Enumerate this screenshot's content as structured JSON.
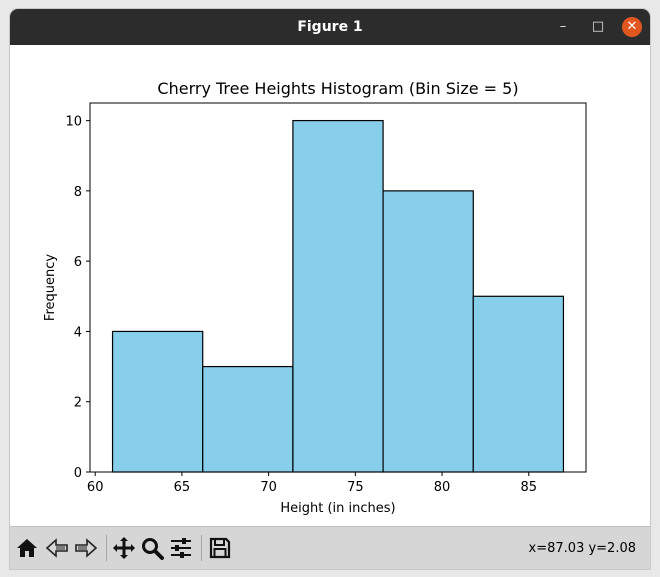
{
  "window": {
    "title": "Figure 1",
    "minimize_glyph": "–",
    "maximize_glyph": "□",
    "close_glyph": "✕",
    "close_color": "#e2561f"
  },
  "chart_data": {
    "type": "bar",
    "title": "Cherry Tree Heights Histogram (Bin Size = 5)",
    "xlabel": "Height (in inches)",
    "ylabel": "Frequency",
    "bins": [
      {
        "start": 61.0,
        "end": 66.2,
        "count": 4
      },
      {
        "start": 66.2,
        "end": 71.4,
        "count": 3
      },
      {
        "start": 71.4,
        "end": 76.6,
        "count": 10
      },
      {
        "start": 76.6,
        "end": 81.8,
        "count": 8
      },
      {
        "start": 81.8,
        "end": 87.0,
        "count": 5
      }
    ],
    "xlim": [
      59.7,
      88.3
    ],
    "ylim": [
      0,
      10.5
    ],
    "xticks": [
      60,
      65,
      70,
      75,
      80,
      85
    ],
    "yticks": [
      0,
      2,
      4,
      6,
      8,
      10
    ],
    "bar_color": "#87ceeb",
    "edge_color": "#000000",
    "grid": false
  },
  "toolbar": {
    "buttons": [
      {
        "name": "home-icon",
        "icon": "home"
      },
      {
        "name": "back-icon",
        "icon": "back"
      },
      {
        "name": "forward-icon",
        "icon": "forward"
      },
      {
        "name": "pan-icon",
        "icon": "pan"
      },
      {
        "name": "zoom-icon",
        "icon": "zoom"
      },
      {
        "name": "configure-subplots-icon",
        "icon": "subplots"
      },
      {
        "name": "save-icon",
        "icon": "save"
      }
    ],
    "coords": "x=87.03 y=2.08"
  }
}
